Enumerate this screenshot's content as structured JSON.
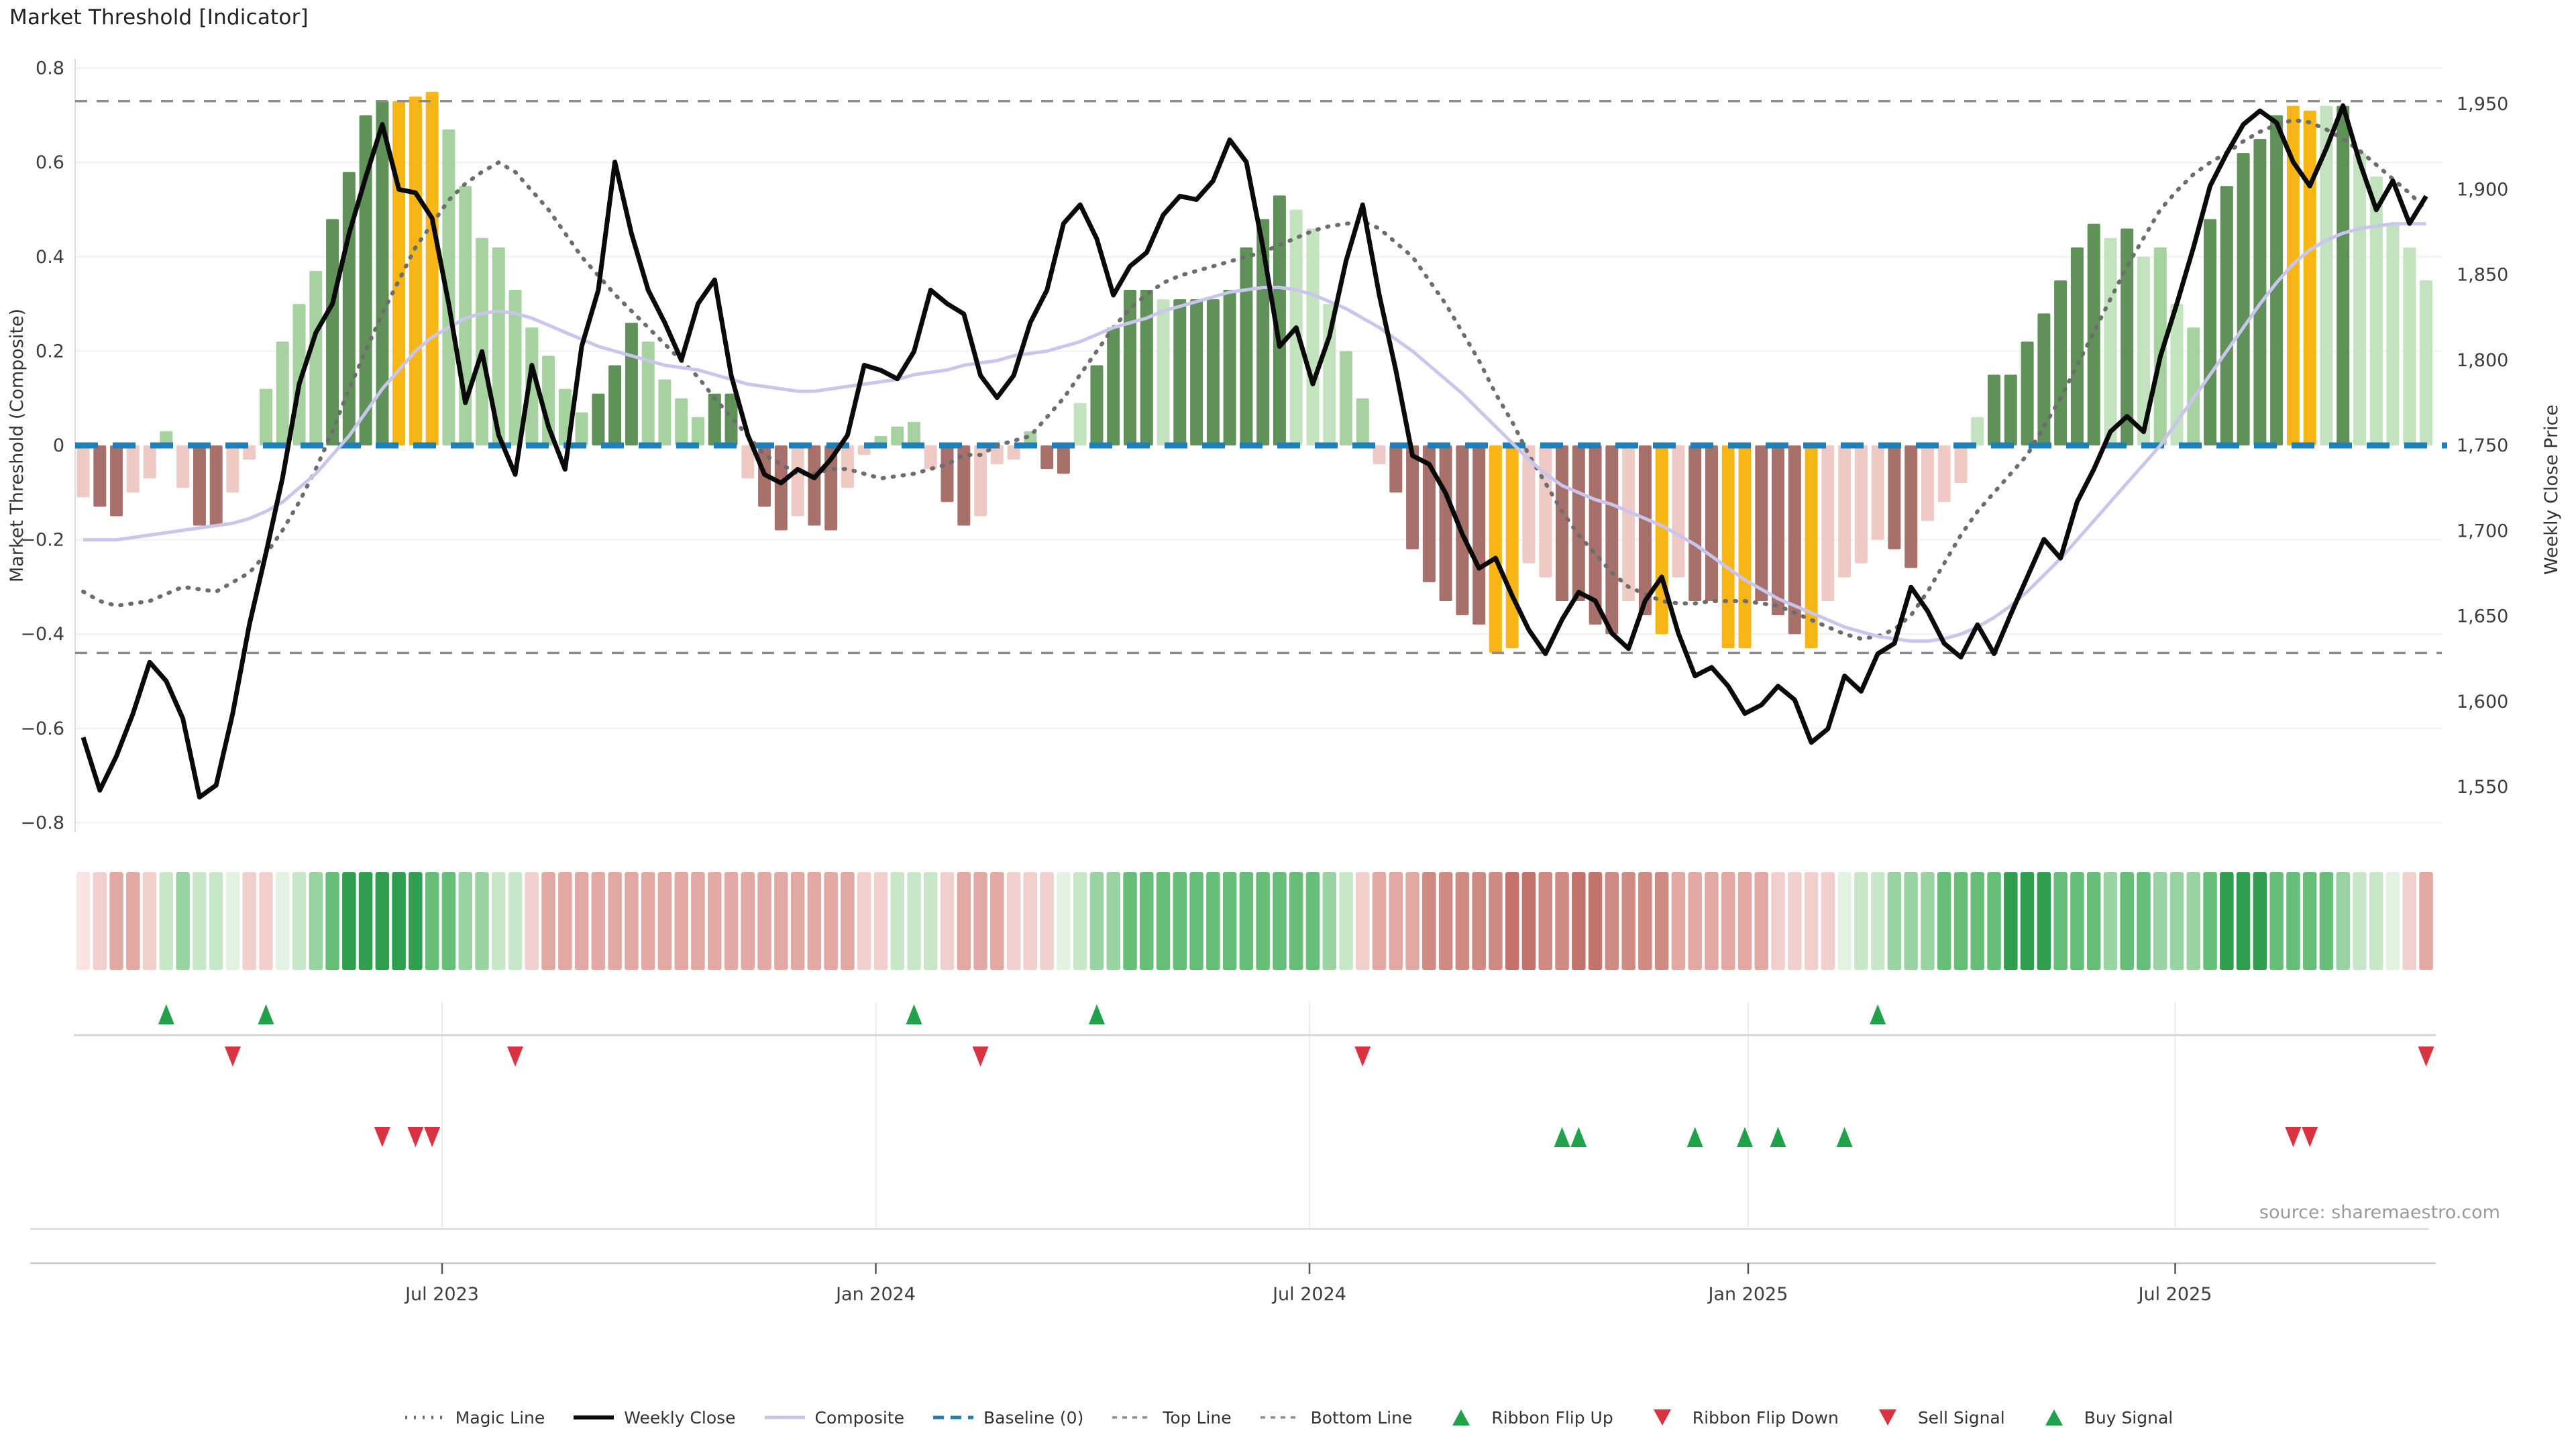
{
  "title": "Market Threshold [Indicator]",
  "source_note": "source: sharemaestro.com",
  "left_axis": {
    "label": "Market Threshold (Composite)",
    "ticks": [
      "0.8",
      "0.6",
      "0.4",
      "0.2",
      "0",
      "−0.2",
      "−0.4",
      "−0.6",
      "−0.8"
    ],
    "tick_values": [
      0.8,
      0.6,
      0.4,
      0.2,
      0,
      -0.2,
      -0.4,
      -0.6,
      -0.8
    ]
  },
  "right_axis": {
    "label": "Weekly Close Price",
    "ticks": [
      "1,950",
      "1,900",
      "1,850",
      "1,800",
      "1,750",
      "1,700",
      "1,650",
      "1,600",
      "1,550"
    ],
    "tick_values": [
      1950,
      1900,
      1850,
      1800,
      1750,
      1700,
      1650,
      1600,
      1550
    ]
  },
  "x_axis": {
    "ticks": [
      {
        "label": "Jul 2023",
        "week": 21.6
      },
      {
        "label": "Jan 2024",
        "week": 47.7
      },
      {
        "label": "Jul 2024",
        "week": 73.8
      },
      {
        "label": "Jan 2025",
        "week": 100.2
      },
      {
        "label": "Jul 2025",
        "week": 125.9
      }
    ]
  },
  "legend": [
    {
      "label": "Magic Line",
      "swatch": "dotted-line",
      "color": "#6d6d6d"
    },
    {
      "label": "Weekly Close",
      "swatch": "solid-line",
      "color": "#0a0a0a"
    },
    {
      "label": "Composite",
      "swatch": "solid-line",
      "color": "#c9c5ec"
    },
    {
      "label": "Baseline (0)",
      "swatch": "dashed-line",
      "color": "#1d7fb5"
    },
    {
      "label": "Top Line",
      "swatch": "smalldash-line",
      "color": "#8c8c8c"
    },
    {
      "label": "Bottom Line",
      "swatch": "smalldash-line",
      "color": "#8c8c8c"
    },
    {
      "label": "Ribbon Flip Up",
      "swatch": "triangle-up",
      "color": "#22A14B"
    },
    {
      "label": "Ribbon Flip Down",
      "swatch": "triangle-down",
      "color": "#D93240"
    },
    {
      "label": "Sell Signal",
      "swatch": "triangle-down",
      "color": "#D93240"
    },
    {
      "label": "Buy Signal",
      "swatch": "triangle-up",
      "color": "#22A14B"
    }
  ],
  "colors": {
    "bar_palette": {
      "P": "#EFC9C4",
      "M": "#A8706B",
      "G": "#A6D2A0",
      "D": "#5F9158",
      "L": "#C3E2BE",
      "Y": "#F8B616"
    },
    "ribbon_palette": {
      "p1": "#F7E4E3",
      "p2": "#F0CFCC",
      "p3": "#E2A9A4",
      "p4": "#D08A84",
      "p5": "#C4736C",
      "g1": "#E3F2E2",
      "g2": "#C8E7C8",
      "g3": "#9AD3A3",
      "g4": "#67BE79",
      "g5": "#2F9E4F"
    },
    "weekly_close": "#0a0a0a",
    "composite": "#c9c5ec",
    "magic_line": "#6d6d6d",
    "baseline": "#1d7fb5",
    "top_bottom_line": "#8c8c8c",
    "grid": "#f0f0f0",
    "signal_up": "#22A14B",
    "signal_down": "#D93240"
  },
  "chart_data": {
    "type": "combo",
    "frequency": "weekly",
    "weeks": 142,
    "left_ylim": [
      -0.8,
      0.8
    ],
    "right_ylim": [
      1550,
      1950
    ],
    "top_line": 0.73,
    "bottom_line": -0.44,
    "baseline": 0,
    "bars": {
      "values": [
        -0.11,
        -0.13,
        -0.15,
        -0.1,
        -0.07,
        0.03,
        -0.09,
        -0.17,
        -0.17,
        -0.1,
        -0.03,
        0.12,
        0.22,
        0.3,
        0.37,
        0.48,
        0.58,
        0.7,
        0.73,
        0.73,
        0.74,
        0.75,
        0.67,
        0.55,
        0.44,
        0.42,
        0.33,
        0.25,
        0.19,
        0.12,
        0.07,
        0.11,
        0.17,
        0.26,
        0.22,
        0.14,
        0.1,
        0.06,
        0.11,
        0.11,
        -0.07,
        -0.13,
        -0.18,
        -0.15,
        -0.17,
        -0.18,
        -0.09,
        -0.02,
        0.02,
        0.04,
        0.05,
        -0.05,
        -0.12,
        -0.17,
        -0.15,
        -0.04,
        -0.03,
        0.03,
        -0.05,
        -0.06,
        0.09,
        0.17,
        0.25,
        0.33,
        0.33,
        0.31,
        0.31,
        0.31,
        0.31,
        0.33,
        0.42,
        0.48,
        0.53,
        0.5,
        0.46,
        0.3,
        0.2,
        0.1,
        -0.04,
        -0.1,
        -0.22,
        -0.29,
        -0.33,
        -0.36,
        -0.38,
        -0.44,
        -0.43,
        -0.25,
        -0.28,
        -0.33,
        -0.33,
        -0.38,
        -0.4,
        -0.33,
        -0.36,
        -0.4,
        -0.28,
        -0.33,
        -0.33,
        -0.43,
        -0.43,
        -0.33,
        -0.36,
        -0.4,
        -0.43,
        -0.33,
        -0.28,
        -0.25,
        -0.2,
        -0.22,
        -0.26,
        -0.16,
        -0.12,
        -0.08,
        0.06,
        0.15,
        0.15,
        0.22,
        0.28,
        0.35,
        0.42,
        0.47,
        0.44,
        0.46,
        0.4,
        0.42,
        0.3,
        0.25,
        0.48,
        0.55,
        0.62,
        0.65,
        0.7,
        0.72,
        0.71,
        0.72,
        0.72,
        0.62,
        0.57,
        0.47,
        0.42,
        0.35
      ],
      "colors": [
        "P",
        "M",
        "M",
        "P",
        "P",
        "G",
        "P",
        "M",
        "M",
        "P",
        "P",
        "G",
        "G",
        "G",
        "G",
        "D",
        "D",
        "D",
        "D",
        "Y",
        "Y",
        "Y",
        "G",
        "G",
        "G",
        "G",
        "G",
        "G",
        "G",
        "G",
        "G",
        "D",
        "D",
        "D",
        "G",
        "G",
        "G",
        "G",
        "D",
        "D",
        "P",
        "M",
        "M",
        "P",
        "M",
        "M",
        "P",
        "P",
        "G",
        "G",
        "G",
        "P",
        "M",
        "M",
        "P",
        "P",
        "P",
        "G",
        "M",
        "M",
        "L",
        "D",
        "D",
        "D",
        "D",
        "L",
        "D",
        "D",
        "D",
        "D",
        "D",
        "D",
        "D",
        "L",
        "L",
        "L",
        "G",
        "G",
        "P",
        "M",
        "M",
        "M",
        "M",
        "M",
        "M",
        "Y",
        "Y",
        "P",
        "P",
        "M",
        "M",
        "M",
        "M",
        "P",
        "M",
        "Y",
        "P",
        "M",
        "M",
        "Y",
        "Y",
        "M",
        "M",
        "M",
        "Y",
        "P",
        "P",
        "P",
        "P",
        "M",
        "M",
        "P",
        "P",
        "P",
        "L",
        "D",
        "D",
        "D",
        "D",
        "D",
        "D",
        "D",
        "L",
        "D",
        "L",
        "G",
        "L",
        "G",
        "D",
        "D",
        "D",
        "D",
        "D",
        "Y",
        "Y",
        "L",
        "D",
        "L",
        "L",
        "L",
        "L",
        "L"
      ]
    },
    "weekly_close_price": [
      1579,
      1548,
      1568,
      1593,
      1623,
      1612,
      1590,
      1544,
      1551,
      1593,
      1645,
      1687,
      1731,
      1786,
      1816,
      1833,
      1874,
      1907,
      1938,
      1900,
      1898,
      1883,
      1833,
      1775,
      1805,
      1756,
      1733,
      1797,
      1761,
      1736,
      1808,
      1841,
      1916,
      1874,
      1841,
      1822,
      1800,
      1833,
      1847,
      1791,
      1756,
      1733,
      1728,
      1736,
      1731,
      1742,
      1756,
      1797,
      1794,
      1789,
      1805,
      1841,
      1833,
      1827,
      1791,
      1778,
      1791,
      1822,
      1841,
      1880,
      1891,
      1871,
      1838,
      1855,
      1863,
      1885,
      1896,
      1894,
      1905,
      1929,
      1916,
      1866,
      1808,
      1819,
      1786,
      1814,
      1858,
      1891,
      1838,
      1794,
      1744,
      1739,
      1722,
      1698,
      1678,
      1684,
      1662,
      1642,
      1628,
      1648,
      1664,
      1659,
      1640,
      1631,
      1659,
      1673,
      1640,
      1615,
      1620,
      1609,
      1593,
      1598,
      1609,
      1601,
      1576,
      1584,
      1615,
      1606,
      1628,
      1634,
      1667,
      1653,
      1634,
      1626,
      1645,
      1628,
      1651,
      1673,
      1695,
      1684,
      1717,
      1736,
      1758,
      1767,
      1758,
      1802,
      1833,
      1866,
      1902,
      1921,
      1938,
      1946,
      1939,
      1916,
      1902,
      1924,
      1949,
      1916,
      1888,
      1905,
      1880,
      1896
    ],
    "composite": [
      -0.2,
      -0.2,
      -0.2,
      -0.195,
      -0.19,
      -0.185,
      -0.18,
      -0.175,
      -0.17,
      -0.165,
      -0.155,
      -0.14,
      -0.12,
      -0.09,
      -0.06,
      -0.02,
      0.02,
      0.07,
      0.12,
      0.16,
      0.2,
      0.23,
      0.25,
      0.27,
      0.28,
      0.285,
      0.28,
      0.27,
      0.255,
      0.24,
      0.225,
      0.21,
      0.2,
      0.19,
      0.18,
      0.17,
      0.165,
      0.16,
      0.15,
      0.14,
      0.13,
      0.125,
      0.12,
      0.115,
      0.115,
      0.12,
      0.125,
      0.13,
      0.135,
      0.14,
      0.15,
      0.155,
      0.16,
      0.17,
      0.175,
      0.18,
      0.19,
      0.195,
      0.2,
      0.21,
      0.22,
      0.235,
      0.25,
      0.26,
      0.27,
      0.285,
      0.295,
      0.305,
      0.315,
      0.325,
      0.33,
      0.335,
      0.335,
      0.33,
      0.32,
      0.305,
      0.29,
      0.27,
      0.25,
      0.225,
      0.2,
      0.17,
      0.14,
      0.11,
      0.075,
      0.04,
      0.005,
      -0.03,
      -0.06,
      -0.085,
      -0.1,
      -0.115,
      -0.125,
      -0.14,
      -0.155,
      -0.17,
      -0.19,
      -0.21,
      -0.235,
      -0.26,
      -0.285,
      -0.305,
      -0.325,
      -0.34,
      -0.355,
      -0.37,
      -0.385,
      -0.395,
      -0.405,
      -0.41,
      -0.415,
      -0.415,
      -0.41,
      -0.4,
      -0.385,
      -0.365,
      -0.34,
      -0.31,
      -0.275,
      -0.24,
      -0.2,
      -0.16,
      -0.12,
      -0.08,
      -0.04,
      0.0,
      0.05,
      0.1,
      0.15,
      0.2,
      0.25,
      0.3,
      0.345,
      0.385,
      0.415,
      0.435,
      0.45,
      0.46,
      0.465,
      0.47,
      0.47,
      0.47
    ],
    "magic_line": [
      -0.31,
      -0.33,
      -0.34,
      -0.335,
      -0.33,
      -0.315,
      -0.3,
      -0.305,
      -0.31,
      -0.29,
      -0.27,
      -0.23,
      -0.18,
      -0.12,
      -0.05,
      0.03,
      0.12,
      0.2,
      0.28,
      0.35,
      0.42,
      0.47,
      0.52,
      0.555,
      0.58,
      0.6,
      0.58,
      0.54,
      0.5,
      0.45,
      0.4,
      0.36,
      0.32,
      0.285,
      0.25,
      0.215,
      0.18,
      0.145,
      0.1,
      0.06,
      0.02,
      -0.02,
      -0.04,
      -0.06,
      -0.06,
      -0.05,
      -0.05,
      -0.06,
      -0.07,
      -0.065,
      -0.06,
      -0.05,
      -0.04,
      -0.02,
      -0.02,
      0.0,
      0.01,
      0.02,
      0.06,
      0.1,
      0.15,
      0.2,
      0.25,
      0.29,
      0.32,
      0.345,
      0.36,
      0.37,
      0.38,
      0.39,
      0.4,
      0.41,
      0.425,
      0.44,
      0.455,
      0.465,
      0.47,
      0.475,
      0.46,
      0.43,
      0.4,
      0.35,
      0.3,
      0.24,
      0.18,
      0.11,
      0.05,
      -0.02,
      -0.08,
      -0.14,
      -0.19,
      -0.23,
      -0.27,
      -0.3,
      -0.315,
      -0.33,
      -0.335,
      -0.335,
      -0.33,
      -0.33,
      -0.33,
      -0.335,
      -0.34,
      -0.355,
      -0.37,
      -0.385,
      -0.4,
      -0.41,
      -0.405,
      -0.39,
      -0.36,
      -0.31,
      -0.25,
      -0.19,
      -0.14,
      -0.1,
      -0.06,
      -0.02,
      0.04,
      0.1,
      0.17,
      0.24,
      0.31,
      0.38,
      0.44,
      0.5,
      0.54,
      0.575,
      0.6,
      0.62,
      0.645,
      0.665,
      0.68,
      0.69,
      0.685,
      0.67,
      0.65,
      0.625,
      0.595,
      0.565,
      0.535,
      0.5
    ],
    "ribbon": [
      "p1",
      "p2",
      "p3",
      "p3",
      "p2",
      "g2",
      "g3",
      "g2",
      "g2",
      "g1",
      "p2",
      "p2",
      "g1",
      "g2",
      "g3",
      "g4",
      "g5",
      "g5",
      "g5",
      "g5",
      "g5",
      "g4",
      "g4",
      "g3",
      "g3",
      "g2",
      "g2",
      "p2",
      "p3",
      "p3",
      "p3",
      "p3",
      "p3",
      "p3",
      "p3",
      "p3",
      "p3",
      "p3",
      "p3",
      "p3",
      "p3",
      "p3",
      "p3",
      "p3",
      "p3",
      "p3",
      "p3",
      "p2",
      "p2",
      "g2",
      "g2",
      "g2",
      "p2",
      "p3",
      "p3",
      "p3",
      "p2",
      "p2",
      "p2",
      "g1",
      "g2",
      "g3",
      "g3",
      "g4",
      "g4",
      "g4",
      "g4",
      "g4",
      "g4",
      "g4",
      "g4",
      "g4",
      "g4",
      "g4",
      "g4",
      "g3",
      "g2",
      "p2",
      "p3",
      "p3",
      "p3",
      "p4",
      "p4",
      "p4",
      "p4",
      "p4",
      "p5",
      "p5",
      "p4",
      "p4",
      "p5",
      "p5",
      "p4",
      "p4",
      "p4",
      "p4",
      "p3",
      "p3",
      "p3",
      "p3",
      "p3",
      "p3",
      "p2",
      "p2",
      "p2",
      "p2",
      "g1",
      "g2",
      "g2",
      "g3",
      "g3",
      "g3",
      "g4",
      "g4",
      "g4",
      "g4",
      "g5",
      "g5",
      "g5",
      "g4",
      "g4",
      "g4",
      "g3",
      "g4",
      "g4",
      "g3",
      "g3",
      "g3",
      "g4",
      "g5",
      "g5",
      "g5",
      "g4",
      "g4",
      "g4",
      "g4",
      "g3",
      "g2",
      "g2",
      "g1",
      "p2",
      "p3"
    ],
    "signals": {
      "ribbon_flip_up_weeks": [
        5,
        11,
        50,
        61,
        108
      ],
      "ribbon_flip_down_weeks": [
        9,
        26,
        54,
        77,
        141
      ],
      "sell_signal_weeks": [
        18,
        20,
        21,
        133,
        134
      ],
      "buy_signal_weeks": [
        89,
        90,
        97,
        100,
        102,
        106
      ]
    }
  }
}
